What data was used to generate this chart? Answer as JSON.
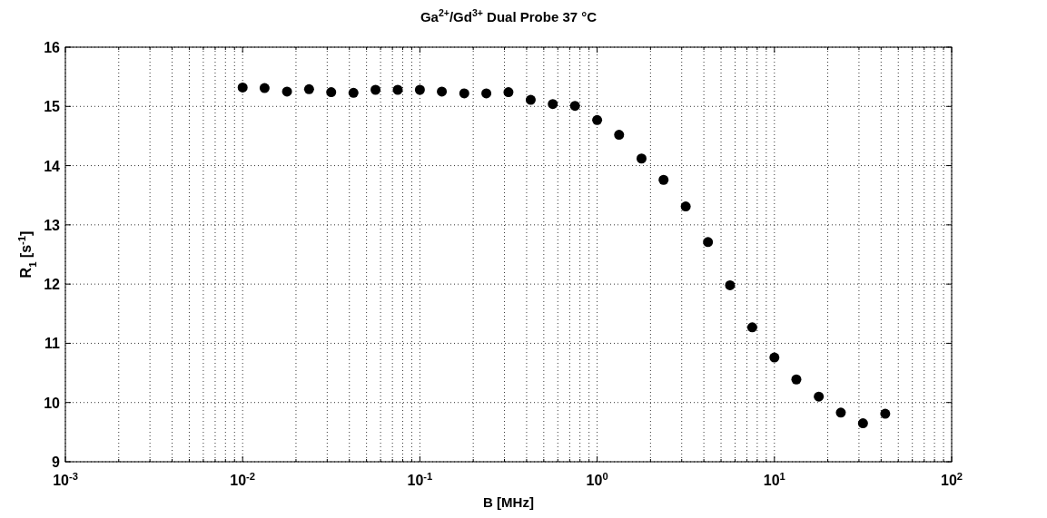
{
  "chart_data": {
    "type": "scatter",
    "title": "Ga$^{2+}$/Gd$^{3+}$ Dual Probe 37 °C",
    "xlabel": "B [MHz]",
    "ylabel": "R$_{1}$ [s$^{-1}$]",
    "log": "x",
    "grid": true,
    "marker": "circle",
    "x": [
      0.01,
      0.0133,
      0.0178,
      0.0237,
      0.0316,
      0.0422,
      0.0562,
      0.075,
      0.1,
      0.133,
      0.178,
      0.237,
      0.316,
      0.422,
      0.562,
      0.75,
      1,
      1.33,
      1.78,
      2.37,
      3.16,
      4.22,
      5.62,
      7.5,
      10,
      13.3,
      17.8,
      23.7,
      31.6,
      42.2
    ],
    "series": [
      {
        "color": "#000000",
        "values": [
          15.32,
          15.31,
          15.25,
          15.29,
          15.24,
          15.23,
          15.28,
          15.28,
          15.28,
          15.25,
          15.22,
          15.22,
          15.24,
          15.11,
          15.04,
          15.01,
          14.77,
          14.52,
          14.12,
          13.76,
          13.31,
          12.71,
          11.98,
          11.27,
          10.76,
          10.39,
          10.1,
          9.83,
          9.65,
          9.81
        ]
      }
    ],
    "xlim": [
      0.001,
      100
    ],
    "xticks": [
      {
        "value": 0.001,
        "label": "10$^{-3}$"
      },
      {
        "value": 0.01,
        "label": "10$^{-2}$"
      },
      {
        "value": 0.1,
        "label": "10$^{-1}$"
      },
      {
        "value": 1,
        "label": "10$^{0}$"
      },
      {
        "value": 10,
        "label": "10$^{1}$"
      },
      {
        "value": 100,
        "label": "10$^{2}$"
      }
    ],
    "ylim": [
      9,
      16
    ],
    "yticks": [
      9,
      10,
      11,
      12,
      13,
      14,
      15,
      16
    ]
  }
}
